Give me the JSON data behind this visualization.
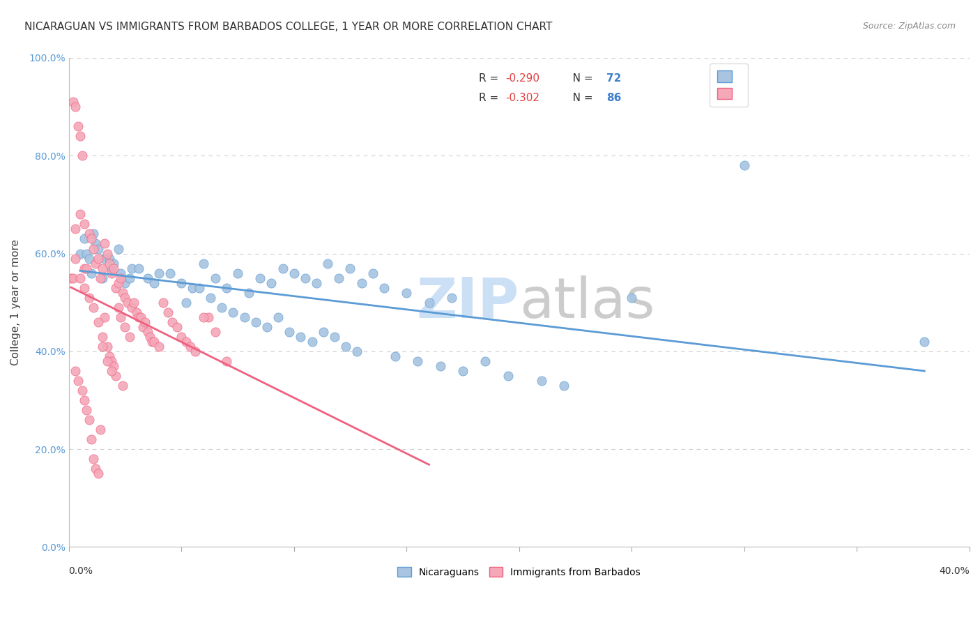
{
  "title": "NICARAGUAN VS IMMIGRANTS FROM BARBADOS COLLEGE, 1 YEAR OR MORE CORRELATION CHART",
  "source": "Source: ZipAtlas.com",
  "ylabel": "College, 1 year or more",
  "xlim": [
    0.0,
    0.4
  ],
  "ylim": [
    0.0,
    1.0
  ],
  "blue_color": "#a8c4e0",
  "pink_color": "#f4a8b8",
  "trendline_blue": "#5b9bd5",
  "trendline_pink": "#f06080",
  "legend_r_color": "#e04040",
  "legend_n_color": "#4080cc",
  "grid_color": "#cccccc",
  "bg_color": "#ffffff",
  "blue_scatter_x": [
    0.005,
    0.007,
    0.008,
    0.009,
    0.01,
    0.011,
    0.012,
    0.013,
    0.015,
    0.016,
    0.018,
    0.019,
    0.02,
    0.022,
    0.023,
    0.025,
    0.027,
    0.028,
    0.031,
    0.035,
    0.038,
    0.04,
    0.045,
    0.05,
    0.052,
    0.055,
    0.058,
    0.06,
    0.063,
    0.065,
    0.068,
    0.07,
    0.073,
    0.075,
    0.078,
    0.08,
    0.083,
    0.085,
    0.088,
    0.09,
    0.093,
    0.095,
    0.098,
    0.1,
    0.103,
    0.105,
    0.108,
    0.11,
    0.113,
    0.115,
    0.118,
    0.12,
    0.123,
    0.125,
    0.128,
    0.13,
    0.135,
    0.14,
    0.145,
    0.15,
    0.155,
    0.16,
    0.165,
    0.17,
    0.175,
    0.185,
    0.195,
    0.21,
    0.22,
    0.3,
    0.38,
    0.25
  ],
  "blue_scatter_y": [
    0.6,
    0.63,
    0.6,
    0.59,
    0.56,
    0.64,
    0.62,
    0.61,
    0.55,
    0.59,
    0.59,
    0.57,
    0.58,
    0.61,
    0.56,
    0.54,
    0.55,
    0.57,
    0.57,
    0.55,
    0.54,
    0.56,
    0.56,
    0.54,
    0.5,
    0.53,
    0.53,
    0.58,
    0.51,
    0.55,
    0.49,
    0.53,
    0.48,
    0.56,
    0.47,
    0.52,
    0.46,
    0.55,
    0.45,
    0.54,
    0.47,
    0.57,
    0.44,
    0.56,
    0.43,
    0.55,
    0.42,
    0.54,
    0.44,
    0.58,
    0.43,
    0.55,
    0.41,
    0.57,
    0.4,
    0.54,
    0.56,
    0.53,
    0.39,
    0.52,
    0.38,
    0.5,
    0.37,
    0.51,
    0.36,
    0.38,
    0.35,
    0.34,
    0.33,
    0.78,
    0.42,
    0.51
  ],
  "pink_scatter_x": [
    0.001,
    0.002,
    0.002,
    0.003,
    0.003,
    0.003,
    0.004,
    0.004,
    0.005,
    0.005,
    0.006,
    0.006,
    0.007,
    0.007,
    0.007,
    0.008,
    0.008,
    0.009,
    0.009,
    0.01,
    0.01,
    0.011,
    0.011,
    0.012,
    0.012,
    0.013,
    0.013,
    0.014,
    0.014,
    0.015,
    0.015,
    0.016,
    0.016,
    0.017,
    0.017,
    0.018,
    0.018,
    0.019,
    0.019,
    0.02,
    0.02,
    0.021,
    0.021,
    0.022,
    0.022,
    0.023,
    0.023,
    0.024,
    0.025,
    0.025,
    0.026,
    0.027,
    0.028,
    0.029,
    0.03,
    0.031,
    0.032,
    0.033,
    0.034,
    0.035,
    0.036,
    0.037,
    0.038,
    0.04,
    0.042,
    0.044,
    0.046,
    0.048,
    0.05,
    0.052,
    0.054,
    0.056,
    0.062,
    0.065,
    0.07,
    0.003,
    0.005,
    0.007,
    0.009,
    0.011,
    0.013,
    0.015,
    0.017,
    0.019,
    0.024,
    0.06
  ],
  "pink_scatter_y": [
    0.55,
    0.91,
    0.55,
    0.9,
    0.65,
    0.36,
    0.86,
    0.34,
    0.84,
    0.68,
    0.8,
    0.32,
    0.66,
    0.57,
    0.3,
    0.57,
    0.28,
    0.64,
    0.26,
    0.63,
    0.22,
    0.61,
    0.18,
    0.58,
    0.16,
    0.59,
    0.15,
    0.55,
    0.24,
    0.57,
    0.43,
    0.62,
    0.47,
    0.6,
    0.41,
    0.58,
    0.39,
    0.56,
    0.38,
    0.57,
    0.37,
    0.53,
    0.35,
    0.54,
    0.49,
    0.55,
    0.47,
    0.52,
    0.51,
    0.45,
    0.5,
    0.43,
    0.49,
    0.5,
    0.48,
    0.47,
    0.47,
    0.45,
    0.46,
    0.44,
    0.43,
    0.42,
    0.42,
    0.41,
    0.5,
    0.48,
    0.46,
    0.45,
    0.43,
    0.42,
    0.41,
    0.4,
    0.47,
    0.44,
    0.38,
    0.59,
    0.55,
    0.53,
    0.51,
    0.49,
    0.46,
    0.41,
    0.38,
    0.36,
    0.33,
    0.47
  ]
}
